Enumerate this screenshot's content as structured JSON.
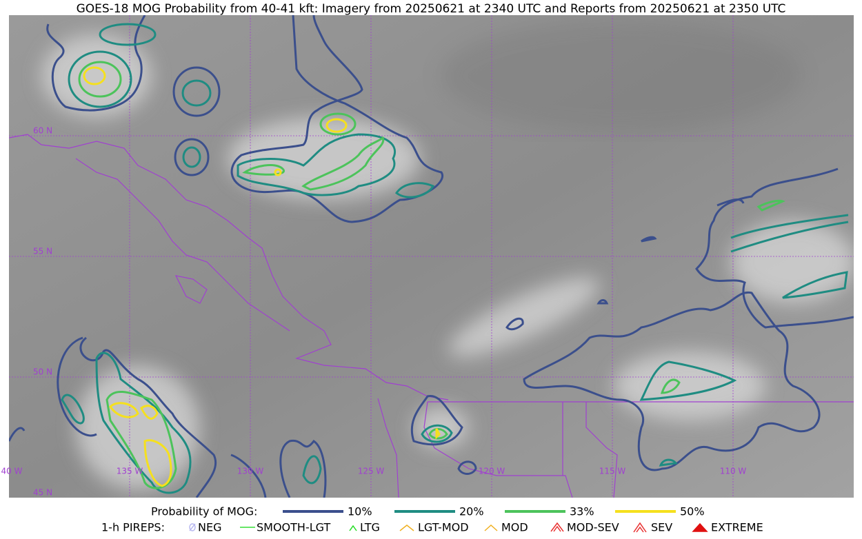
{
  "title": "GOES-18 MOG Probability from 40-41 kft: Imagery from 20250621 at 2340 UTC and Reports from 20250621 at 2350 UTC",
  "map": {
    "lat_labels": [
      "60 N",
      "55 N",
      "50 N",
      "45 N"
    ],
    "lon_labels": [
      "40 W",
      "135 W",
      "130 W",
      "125 W",
      "120 W",
      "115 W",
      "110 W"
    ]
  },
  "legend": {
    "probability_label": "Probability of MOG:",
    "probability_items": [
      {
        "label": "10%",
        "color": "#3b4f8c"
      },
      {
        "label": "20%",
        "color": "#1f8c82"
      },
      {
        "label": "33%",
        "color": "#4cc35b"
      },
      {
        "label": "50%",
        "color": "#f5e01e"
      }
    ],
    "pirep_label": "1-h PIREPS:",
    "pirep_items": [
      {
        "label": "NEG",
        "color": "#b8b8f0"
      },
      {
        "label": "SMOOTH-LGT",
        "color": "#33dd33"
      },
      {
        "label": "LTG",
        "color": "#22dd22"
      },
      {
        "label": "LGT-MOD",
        "color": "#f0b020"
      },
      {
        "label": "MOD",
        "color": "#f0b020"
      },
      {
        "label": "MOD-SEV",
        "color": "#e83030"
      },
      {
        "label": "SEV",
        "color": "#e83030"
      },
      {
        "label": "EXTREME",
        "color": "#e01010"
      }
    ]
  }
}
